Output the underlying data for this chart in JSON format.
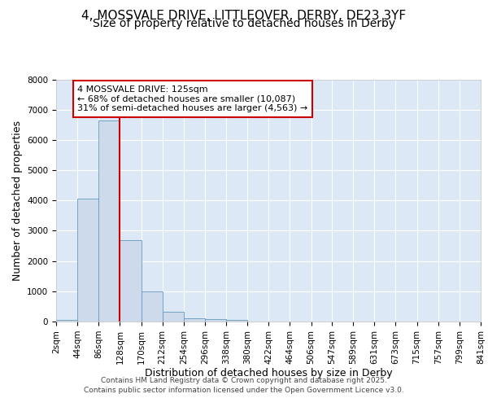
{
  "title_line1": "4, MOSSVALE DRIVE, LITTLEOVER, DERBY, DE23 3YF",
  "title_line2": "Size of property relative to detached houses in Derby",
  "xlabel": "Distribution of detached houses by size in Derby",
  "ylabel": "Number of detached properties",
  "bin_edges": [
    2,
    44,
    86,
    128,
    170,
    212,
    254,
    296,
    338,
    380,
    422,
    464,
    506,
    547,
    589,
    631,
    673,
    715,
    757,
    799,
    841
  ],
  "bar_heights": [
    60,
    4050,
    6650,
    2700,
    1000,
    330,
    120,
    70,
    60,
    0,
    0,
    0,
    0,
    0,
    0,
    0,
    0,
    0,
    0,
    0
  ],
  "bar_color": "#ccdaeb",
  "bar_edge_color": "#6699bb",
  "vline_x": 128,
  "vline_color": "#cc0000",
  "ylim": [
    0,
    8000
  ],
  "yticks": [
    0,
    1000,
    2000,
    3000,
    4000,
    5000,
    6000,
    7000,
    8000
  ],
  "annotation_title": "4 MOSSVALE DRIVE: 125sqm",
  "annotation_line1": "← 68% of detached houses are smaller (10,087)",
  "annotation_line2": "31% of semi-detached houses are larger (4,563) →",
  "annotation_box_color": "#cc0000",
  "background_color": "#dce8f5",
  "grid_color": "#ffffff",
  "footer_line1": "Contains HM Land Registry data © Crown copyright and database right 2025.",
  "footer_line2": "Contains public sector information licensed under the Open Government Licence v3.0.",
  "title_fontsize": 11,
  "subtitle_fontsize": 10,
  "axis_label_fontsize": 9,
  "tick_fontsize": 7.5,
  "annotation_fontsize": 8,
  "footer_fontsize": 6.5
}
